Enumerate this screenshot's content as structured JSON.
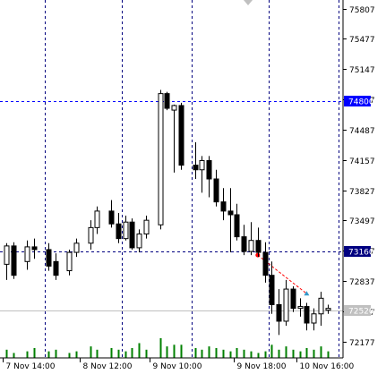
{
  "chart_data": {
    "type": "candlestick",
    "symbol_timeframe": "H2",
    "price_axis": {
      "ylim": [
        72000,
        75900
      ],
      "tick_labels": [
        "75807",
        "75477",
        "75147",
        "74817",
        "74487",
        "74157",
        "73827",
        "73497",
        "73167",
        "72837",
        "72507",
        "72177"
      ],
      "tick_values": [
        75807,
        75477,
        75147,
        74817,
        74487,
        74157,
        73827,
        73497,
        73167,
        72837,
        72507,
        72177
      ]
    },
    "time_axis": {
      "labels": [
        "7 Nov 14:00",
        "8 Nov 12:00",
        "9 Nov 10:00",
        "9 Nov 18:00",
        "10 Nov 16:00"
      ],
      "label_bar_index": [
        0,
        11,
        21,
        33,
        42
      ]
    },
    "vertical_grid_bars": [
      6,
      17,
      27,
      38,
      48
    ],
    "horizontal_levels": [
      {
        "name": "level-upper",
        "label": "74800",
        "value": 74800,
        "color": "#0000ff"
      },
      {
        "name": "level-lower",
        "label": "73160",
        "value": 73160,
        "color": "#000080"
      },
      {
        "name": "level-current",
        "label": "72520",
        "value": 72520,
        "color": "#c0c0c0"
      }
    ],
    "candles": [
      {
        "o": 73020,
        "h": 73250,
        "l": 72850,
        "c": 73220
      },
      {
        "o": 73220,
        "h": 73260,
        "l": 72860,
        "c": 72900
      },
      {
        "o": 73050,
        "h": 73280,
        "l": 72960,
        "c": 73210
      },
      {
        "o": 73210,
        "h": 73300,
        "l": 73080,
        "c": 73180
      },
      {
        "o": 73180,
        "h": 73250,
        "l": 72950,
        "c": 73000
      },
      {
        "o": 73050,
        "h": 73140,
        "l": 72850,
        "c": 72900
      },
      {
        "o": 72950,
        "h": 73180,
        "l": 72900,
        "c": 73150
      },
      {
        "o": 73150,
        "h": 73300,
        "l": 73100,
        "c": 73250
      },
      {
        "o": 73250,
        "h": 73500,
        "l": 73180,
        "c": 73420
      },
      {
        "o": 73420,
        "h": 73650,
        "l": 73350,
        "c": 73600
      },
      {
        "o": 73600,
        "h": 73720,
        "l": 73420,
        "c": 73460
      },
      {
        "o": 73460,
        "h": 73580,
        "l": 73250,
        "c": 73300
      },
      {
        "o": 73300,
        "h": 73550,
        "l": 73280,
        "c": 73480
      },
      {
        "o": 73480,
        "h": 73520,
        "l": 73180,
        "c": 73200
      },
      {
        "o": 73200,
        "h": 73400,
        "l": 73150,
        "c": 73350
      },
      {
        "o": 73350,
        "h": 73550,
        "l": 73300,
        "c": 73500
      },
      {
        "o": 73450,
        "h": 74920,
        "l": 73400,
        "c": 74880
      },
      {
        "o": 74880,
        "h": 74900,
        "l": 74700,
        "c": 74720
      },
      {
        "o": 74700,
        "h": 74760,
        "l": 74020,
        "c": 74750
      },
      {
        "o": 74750,
        "h": 74780,
        "l": 74050,
        "c": 74100
      },
      {
        "o": 74100,
        "h": 74350,
        "l": 73950,
        "c": 74050
      },
      {
        "o": 74050,
        "h": 74200,
        "l": 73800,
        "c": 74150
      },
      {
        "o": 74150,
        "h": 74200,
        "l": 73750,
        "c": 73950
      },
      {
        "o": 73950,
        "h": 74050,
        "l": 73650,
        "c": 73700
      },
      {
        "o": 73700,
        "h": 73850,
        "l": 73500,
        "c": 73600
      },
      {
        "o": 73600,
        "h": 73850,
        "l": 73150,
        "c": 73560
      },
      {
        "o": 73560,
        "h": 73680,
        "l": 73280,
        "c": 73320
      },
      {
        "o": 73320,
        "h": 73450,
        "l": 73120,
        "c": 73160
      },
      {
        "o": 73160,
        "h": 73480,
        "l": 73120,
        "c": 73280
      },
      {
        "o": 73280,
        "h": 73420,
        "l": 73100,
        "c": 73150
      },
      {
        "o": 73150,
        "h": 73260,
        "l": 72820,
        "c": 72900
      },
      {
        "o": 72900,
        "h": 73050,
        "l": 72480,
        "c": 72580
      },
      {
        "o": 72580,
        "h": 72750,
        "l": 72250,
        "c": 72400
      },
      {
        "o": 72400,
        "h": 72850,
        "l": 72350,
        "c": 72750
      },
      {
        "o": 72750,
        "h": 72780,
        "l": 72500,
        "c": 72540
      },
      {
        "o": 72540,
        "h": 72650,
        "l": 72450,
        "c": 72560
      },
      {
        "o": 72560,
        "h": 72600,
        "l": 72300,
        "c": 72380
      },
      {
        "o": 72380,
        "h": 72540,
        "l": 72300,
        "c": 72480
      },
      {
        "o": 72480,
        "h": 72720,
        "l": 72350,
        "c": 72650
      },
      {
        "o": 72520,
        "h": 72580,
        "l": 72480,
        "c": 72540
      }
    ],
    "candle_positions": [
      0,
      1,
      3,
      4,
      6,
      7,
      9,
      10,
      12,
      13,
      15,
      16,
      17,
      18,
      19,
      20,
      22,
      23,
      24,
      25,
      27,
      28,
      29,
      30,
      31,
      32,
      33,
      34,
      35,
      36,
      37,
      38,
      39,
      40,
      41,
      42,
      43,
      44,
      45,
      46
    ],
    "volumes": [
      5,
      3,
      4,
      6,
      4,
      5,
      3,
      4,
      7,
      5,
      6,
      5,
      4,
      6,
      9,
      5,
      12,
      7,
      8,
      8,
      6,
      5,
      7,
      6,
      5,
      4,
      6,
      5,
      4,
      3,
      4,
      8,
      5,
      7,
      5,
      4,
      6,
      5,
      7,
      4
    ],
    "trade_line": {
      "from_candle": 29,
      "to_candle": 36,
      "from_price": 73120,
      "to_price": 72700,
      "color": "#ff0000"
    }
  }
}
